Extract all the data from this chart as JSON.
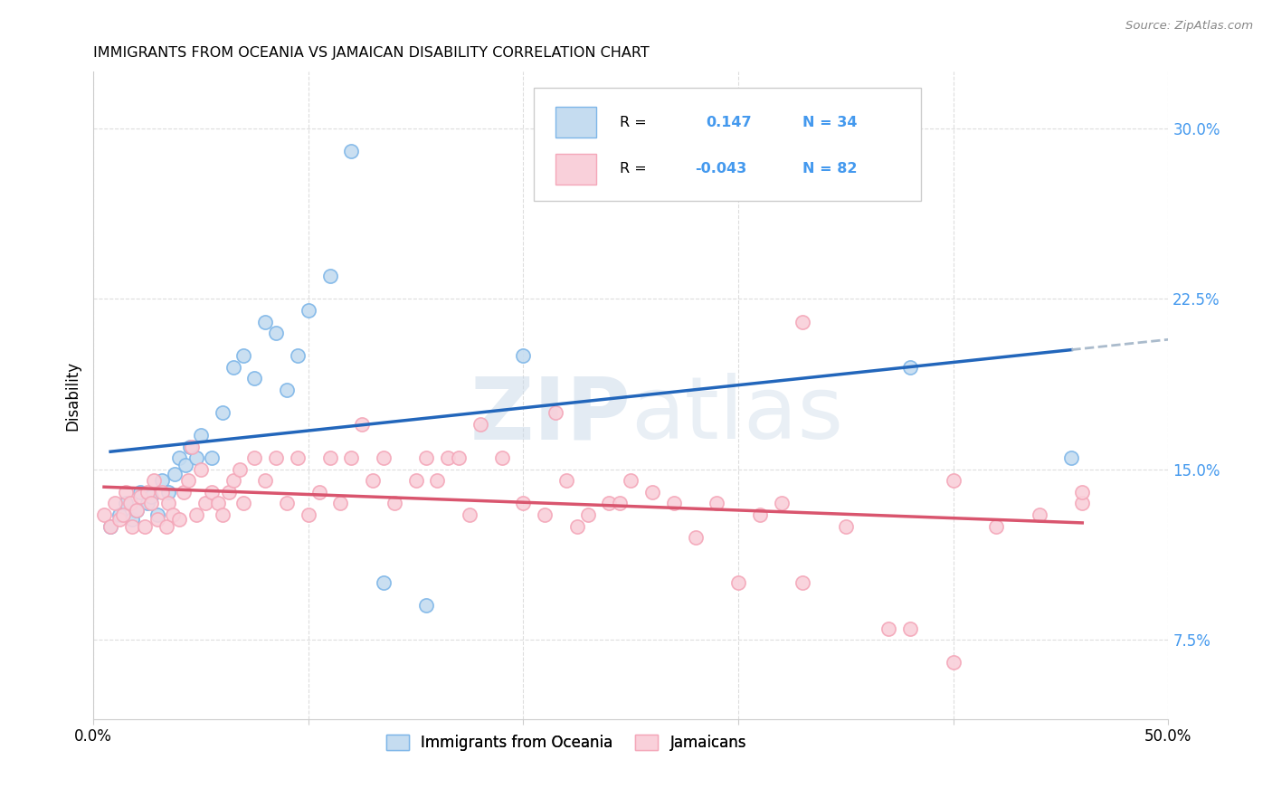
{
  "title": "IMMIGRANTS FROM OCEANIA VS JAMAICAN DISABILITY CORRELATION CHART",
  "source": "Source: ZipAtlas.com",
  "ylabel": "Disability",
  "xlim": [
    0.0,
    0.5
  ],
  "ylim": [
    0.04,
    0.325
  ],
  "xticks": [
    0.0,
    0.1,
    0.2,
    0.3,
    0.4,
    0.5
  ],
  "xtick_labels": [
    "0.0%",
    "",
    "",
    "",
    "",
    "50.0%"
  ],
  "ytick_positions": [
    0.075,
    0.15,
    0.225,
    0.3
  ],
  "ytick_labels": [
    "7.5%",
    "15.0%",
    "22.5%",
    "30.0%"
  ],
  "watermark": "ZIPatlas",
  "color_blue_face": "#C5DCF0",
  "color_blue_edge": "#7EB6E8",
  "color_pink_face": "#F9D0DA",
  "color_pink_edge": "#F4A7B9",
  "line_blue": "#2266BB",
  "line_pink": "#D9556E",
  "line_dashed_color": "#AABBCC",
  "ytick_color": "#4499EE",
  "xtick_color": "#000000",
  "grid_color": "#DDDDDD",
  "blue_points_x": [
    0.008,
    0.012,
    0.015,
    0.018,
    0.02,
    0.022,
    0.025,
    0.027,
    0.03,
    0.032,
    0.035,
    0.038,
    0.04,
    0.043,
    0.045,
    0.048,
    0.05,
    0.055,
    0.06,
    0.065,
    0.07,
    0.075,
    0.08,
    0.085,
    0.09,
    0.095,
    0.1,
    0.11,
    0.12,
    0.135,
    0.155,
    0.2,
    0.38,
    0.455
  ],
  "blue_points_y": [
    0.125,
    0.13,
    0.135,
    0.128,
    0.132,
    0.14,
    0.135,
    0.138,
    0.13,
    0.145,
    0.14,
    0.148,
    0.155,
    0.152,
    0.16,
    0.155,
    0.165,
    0.155,
    0.175,
    0.195,
    0.2,
    0.19,
    0.215,
    0.21,
    0.185,
    0.2,
    0.22,
    0.235,
    0.29,
    0.1,
    0.09,
    0.2,
    0.195,
    0.155
  ],
  "pink_points_x": [
    0.005,
    0.008,
    0.01,
    0.012,
    0.014,
    0.015,
    0.017,
    0.018,
    0.02,
    0.022,
    0.024,
    0.025,
    0.027,
    0.028,
    0.03,
    0.032,
    0.034,
    0.035,
    0.037,
    0.04,
    0.042,
    0.044,
    0.046,
    0.048,
    0.05,
    0.052,
    0.055,
    0.058,
    0.06,
    0.063,
    0.065,
    0.068,
    0.07,
    0.075,
    0.08,
    0.085,
    0.09,
    0.095,
    0.1,
    0.105,
    0.11,
    0.115,
    0.12,
    0.125,
    0.13,
    0.135,
    0.14,
    0.15,
    0.155,
    0.16,
    0.165,
    0.17,
    0.175,
    0.18,
    0.19,
    0.2,
    0.21,
    0.215,
    0.22,
    0.225,
    0.23,
    0.24,
    0.245,
    0.25,
    0.26,
    0.27,
    0.28,
    0.29,
    0.3,
    0.31,
    0.32,
    0.33,
    0.35,
    0.37,
    0.38,
    0.4,
    0.42,
    0.44,
    0.33,
    0.4,
    0.46,
    0.46
  ],
  "pink_points_y": [
    0.13,
    0.125,
    0.135,
    0.128,
    0.13,
    0.14,
    0.135,
    0.125,
    0.132,
    0.138,
    0.125,
    0.14,
    0.135,
    0.145,
    0.128,
    0.14,
    0.125,
    0.135,
    0.13,
    0.128,
    0.14,
    0.145,
    0.16,
    0.13,
    0.15,
    0.135,
    0.14,
    0.135,
    0.13,
    0.14,
    0.145,
    0.15,
    0.135,
    0.155,
    0.145,
    0.155,
    0.135,
    0.155,
    0.13,
    0.14,
    0.155,
    0.135,
    0.155,
    0.17,
    0.145,
    0.155,
    0.135,
    0.145,
    0.155,
    0.145,
    0.155,
    0.155,
    0.13,
    0.17,
    0.155,
    0.135,
    0.13,
    0.175,
    0.145,
    0.125,
    0.13,
    0.135,
    0.135,
    0.145,
    0.14,
    0.135,
    0.12,
    0.135,
    0.1,
    0.13,
    0.135,
    0.1,
    0.125,
    0.08,
    0.08,
    0.145,
    0.125,
    0.13,
    0.215,
    0.065,
    0.135,
    0.14
  ]
}
